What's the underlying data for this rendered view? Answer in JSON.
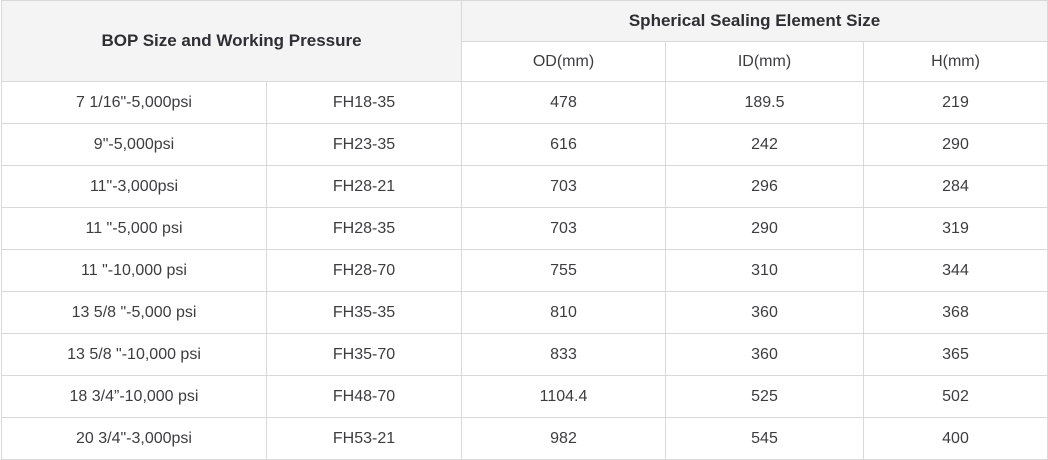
{
  "table": {
    "header": {
      "left_group": "BOP Size and Working Pressure",
      "right_group": "Spherical Sealing Element Size",
      "sub_columns": [
        "OD(mm)",
        "ID(mm)",
        "H(mm)"
      ]
    },
    "rows": [
      [
        "7 1/16\"-5,000psi",
        "FH18-35",
        "478",
        "189.5",
        "219"
      ],
      [
        "9\"-5,000psi",
        "FH23-35",
        "616",
        "242",
        "290"
      ],
      [
        "11\"-3,000psi",
        "FH28-21",
        "703",
        "296",
        "284"
      ],
      [
        "11 \"-5,000 psi",
        "FH28-35",
        "703",
        "290",
        "319"
      ],
      [
        "11 \"-10,000 psi",
        "FH28-70",
        "755",
        "310",
        "344"
      ],
      [
        "13 5/8 \"-5,000 psi",
        "FH35-35",
        "810",
        "360",
        "368"
      ],
      [
        "13 5/8 \"-10,000 psi",
        "FH35-70",
        "833",
        "360",
        "365"
      ],
      [
        "18 3/4”-10,000 psi",
        "FH48-70",
        "1104.4",
        "525",
        "502"
      ],
      [
        "20 3/4\"-3,000psi",
        "FH53-21",
        "982",
        "545",
        "400"
      ]
    ],
    "colors": {
      "header_bg": "#f4f4f5",
      "border": "#d9d9d9",
      "text": "#3d3d40",
      "header_text": "#2f2f33"
    }
  }
}
